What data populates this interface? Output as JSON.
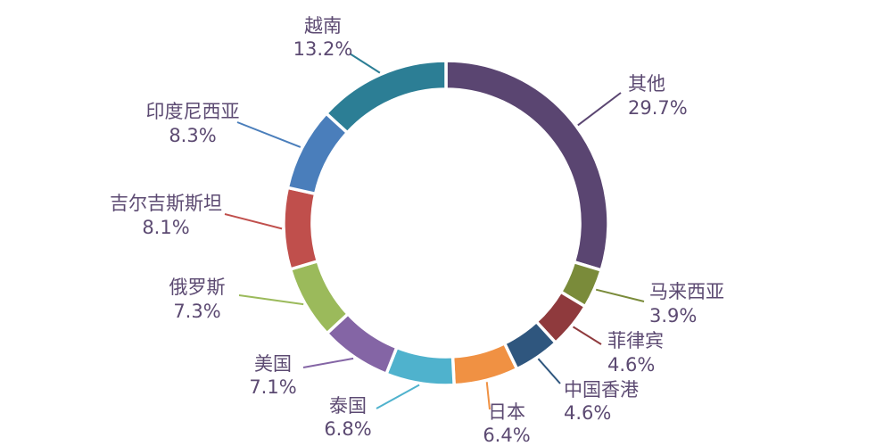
{
  "chart_data": {
    "type": "pie",
    "subtype": "donut",
    "title": "",
    "direction": "clockwise",
    "start_angle_deg": 0,
    "legend": "none",
    "background": "#ffffff",
    "label_color": "#5c4a72",
    "categories": [
      "其他",
      "马来西亚",
      "菲律宾",
      "中国香港",
      "日本",
      "泰国",
      "美国",
      "俄罗斯",
      "吉尔吉斯斯坦",
      "印度尼西亚",
      "越南"
    ],
    "values": [
      29.7,
      3.9,
      4.6,
      4.6,
      6.4,
      6.8,
      7.1,
      7.3,
      8.1,
      8.3,
      13.2
    ],
    "labels": [
      "29.7%",
      "3.9%",
      "4.6%",
      "4.6%",
      "6.4%",
      "6.8%",
      "7.1%",
      "7.3%",
      "8.1%",
      "8.3%",
      "13.2%"
    ],
    "colors": [
      "#5a4571",
      "#7a8b3a",
      "#8f3a3d",
      "#2f567e",
      "#f09143",
      "#4fb2cd",
      "#8465a5",
      "#9bba5b",
      "#c04f4c",
      "#4a7ebb",
      "#2c7e95"
    ]
  }
}
